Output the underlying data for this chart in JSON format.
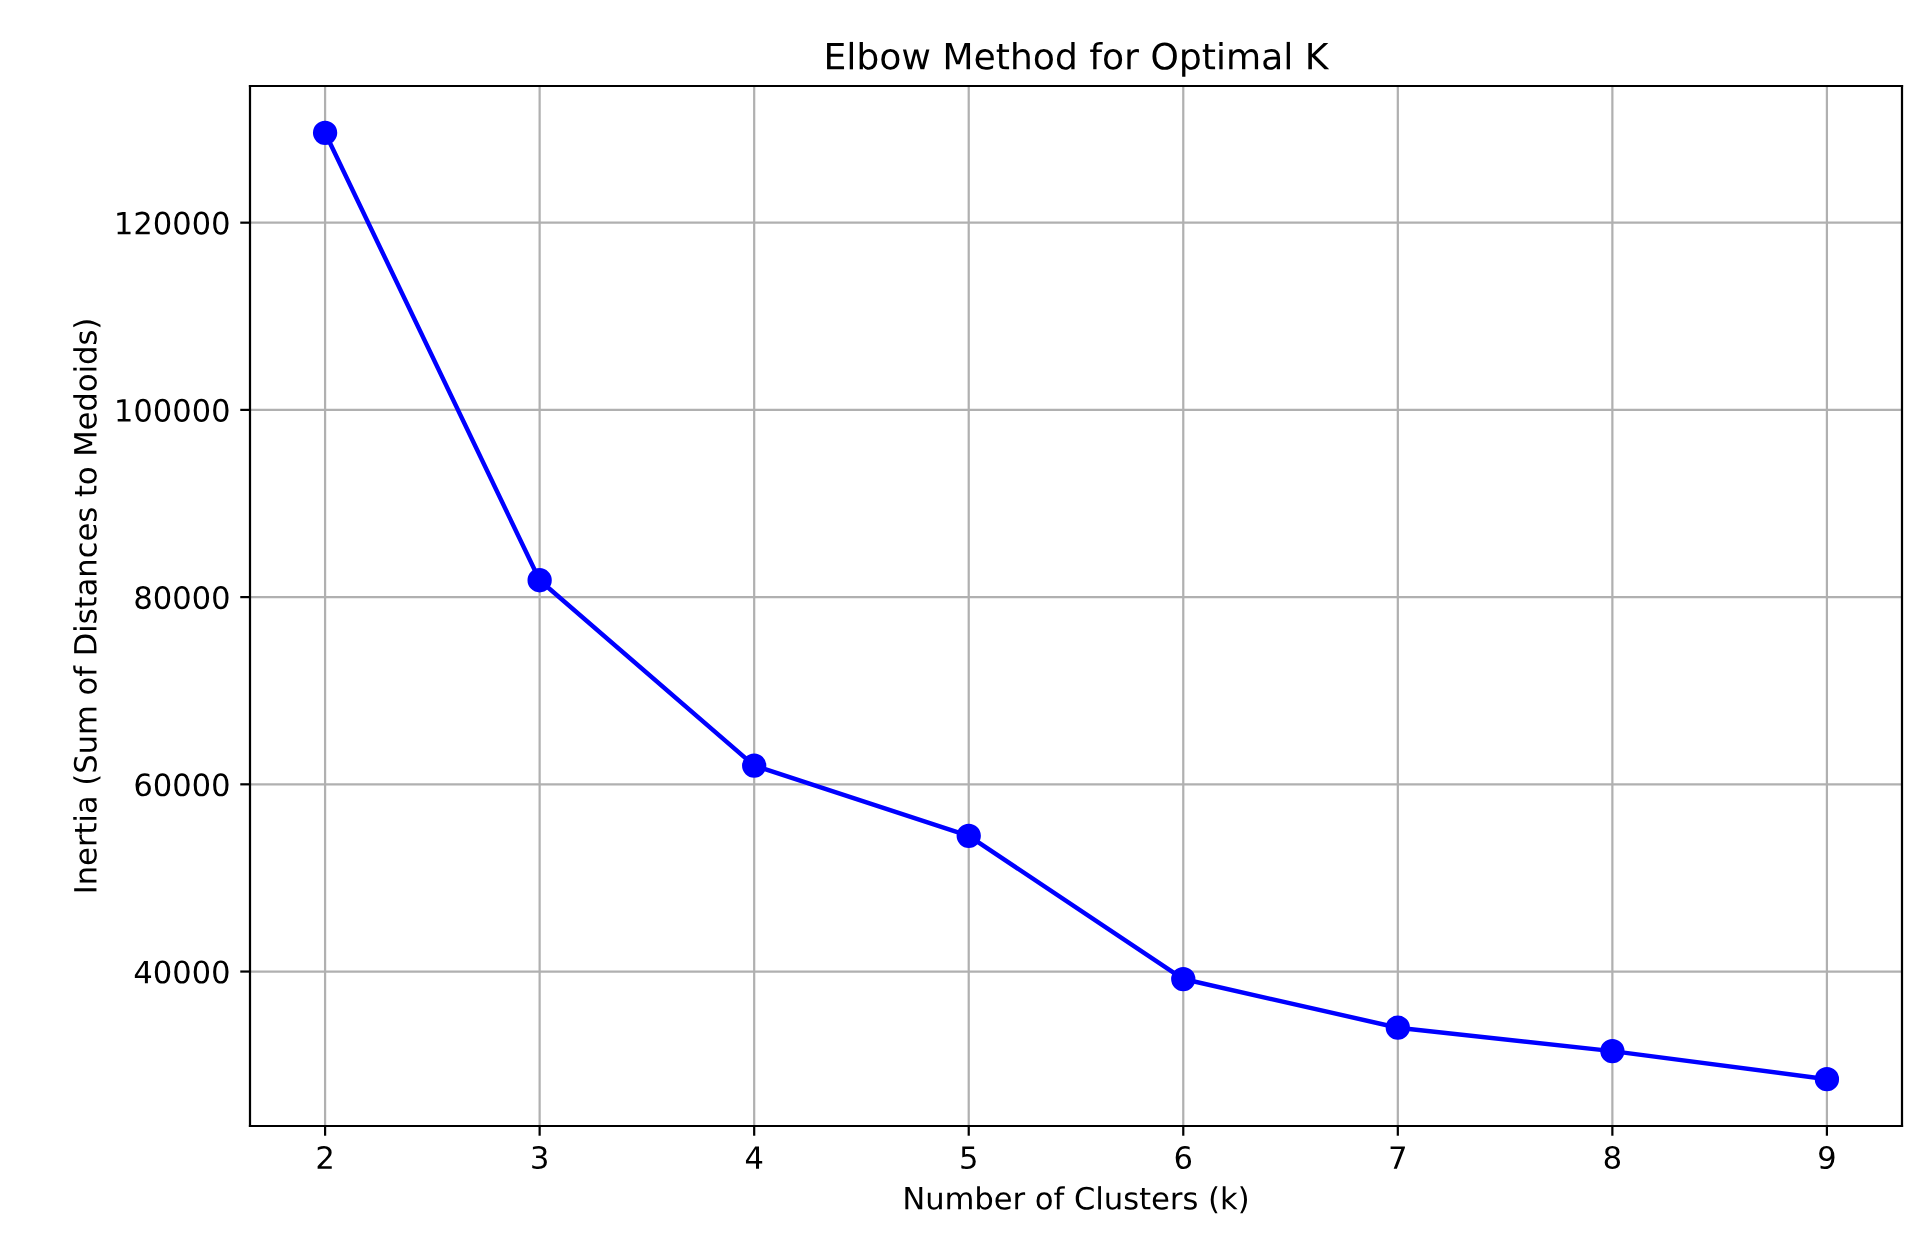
{
  "chart_data": {
    "type": "line",
    "title": "Elbow Method for Optimal K",
    "xlabel": "Number of Clusters (k)",
    "ylabel": "Inertia (Sum of Distances to Medoids)",
    "x": [
      2,
      3,
      4,
      5,
      6,
      7,
      8,
      9
    ],
    "series": [
      {
        "color": "#0000ff",
        "values": [
          129600,
          81800,
          62000,
          54500,
          39200,
          34000,
          31500,
          28500
        ]
      }
    ],
    "xlim": [
      1.65,
      9.35
    ],
    "xticks": [
      2,
      3,
      4,
      5,
      6,
      7,
      8,
      9
    ],
    "ylim": [
      23500,
      134600
    ],
    "yticks": [
      40000,
      60000,
      80000,
      100000,
      120000
    ],
    "grid": true,
    "marker": "circle",
    "line_style": "solid"
  }
}
